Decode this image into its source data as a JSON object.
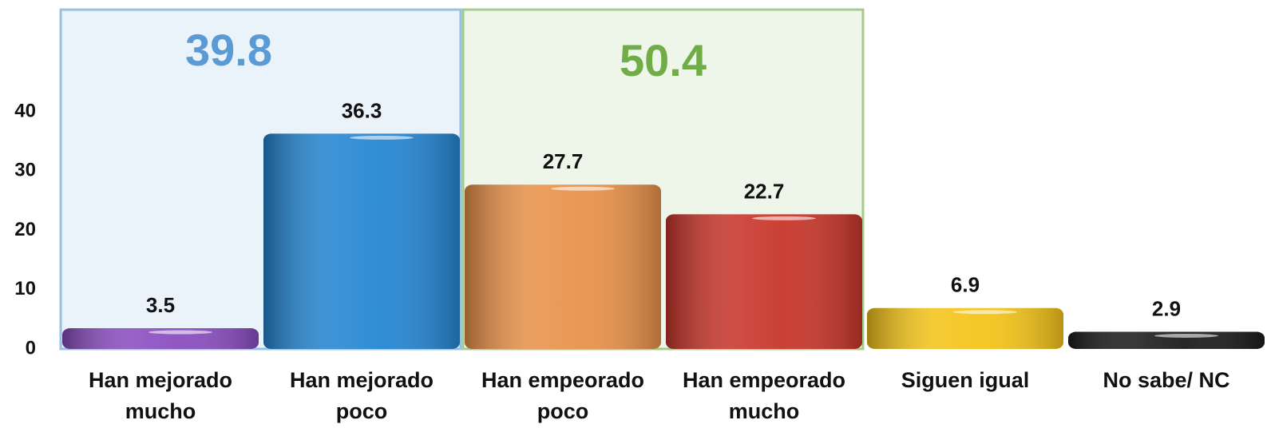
{
  "chart_data": {
    "type": "bar",
    "categories": [
      "Han mejorado mucho",
      "Han mejorado poco",
      "Han empeorado poco",
      "Han empeorado mucho",
      "Siguen igual",
      "No sabe/ NC"
    ],
    "values": [
      3.5,
      36.3,
      27.7,
      22.7,
      6.9,
      2.9
    ],
    "colors": [
      "#8a4dbf",
      "#2586d2",
      "#e8924a",
      "#c8362b",
      "#f4c41a",
      "#1c1c1c"
    ],
    "ylim": [
      0,
      57.5
    ],
    "yticks": [
      0,
      10,
      20,
      30,
      40
    ],
    "grid": false,
    "groups": [
      {
        "value": 39.8,
        "color": "#5b9bd5",
        "members": [
          "Han mejorado mucho",
          "Han mejorado poco"
        ]
      },
      {
        "value": 50.4,
        "color": "#70ad47",
        "members": [
          "Han empeorado poco",
          "Han empeorado mucho"
        ]
      }
    ]
  }
}
